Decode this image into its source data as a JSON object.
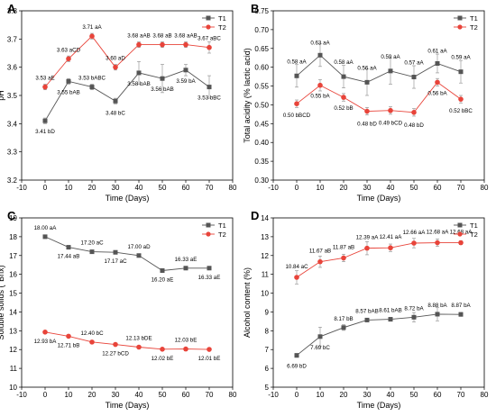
{
  "chart_data": [
    {
      "type": "line",
      "panel": "A",
      "xlabel": "Time (Days)",
      "ylabel": "pH",
      "xlim": [
        -10,
        80
      ],
      "ylim": [
        3.2,
        3.8
      ],
      "xticks": [
        -10,
        0,
        10,
        20,
        30,
        40,
        50,
        60,
        70,
        80
      ],
      "yticks": [
        3.2,
        3.3,
        3.4,
        3.5,
        3.6,
        3.7,
        3.8
      ],
      "ytick_labels": [
        "3.2",
        "3.3",
        "3.4",
        "3.5",
        "3.6",
        "3.7",
        "3.8"
      ],
      "x": [
        0,
        10,
        20,
        30,
        40,
        50,
        60,
        70
      ],
      "legend_position": "top-right",
      "series": [
        {
          "name": "T1",
          "color": "#555555",
          "marker": "square",
          "values": [
            3.41,
            3.55,
            3.53,
            3.48,
            3.58,
            3.56,
            3.59,
            3.53
          ],
          "errors": [
            0.01,
            0.01,
            0.01,
            0.01,
            0.04,
            0.05,
            0.02,
            0.04
          ],
          "labels": [
            "3.41 bD",
            "3.55 bAB",
            "3.53 bABC",
            "3.48 bC",
            "3.58 bAB",
            "3.56 bAB",
            "3.59 bA",
            "3.53 bBC"
          ]
        },
        {
          "name": "T2",
          "color": "#e8443a",
          "marker": "circle",
          "values": [
            3.53,
            3.63,
            3.71,
            3.6,
            3.68,
            3.68,
            3.68,
            3.67
          ],
          "errors": [
            0.01,
            0.01,
            0.01,
            0.01,
            0.01,
            0.01,
            0.01,
            0.02
          ],
          "labels": [
            "3.53 aE",
            "3.63 aCD",
            "3.71 aA",
            "3.60 aD",
            "3.68 aAB",
            "3.68 aB",
            "3.68 aAB",
            "3.67 aBC"
          ]
        }
      ]
    },
    {
      "type": "line",
      "panel": "B",
      "xlabel": "Time (Days)",
      "ylabel": "Total acidity (% lactic acid)",
      "xlim": [
        -10,
        80
      ],
      "ylim": [
        0.3,
        0.75
      ],
      "xticks": [
        -10,
        0,
        10,
        20,
        30,
        40,
        50,
        60,
        70,
        80
      ],
      "yticks": [
        0.3,
        0.35,
        0.4,
        0.45,
        0.5,
        0.55,
        0.6,
        0.65,
        0.7,
        0.75
      ],
      "ytick_labels": [
        "0.30",
        "0.35",
        "0.40",
        "0.45",
        "0.50",
        "0.55",
        "0.60",
        "0.65",
        "0.70",
        "0.75"
      ],
      "x": [
        0,
        10,
        20,
        30,
        40,
        50,
        60,
        70
      ],
      "legend_position": "top-right",
      "series": [
        {
          "name": "T1",
          "color": "#555555",
          "marker": "square",
          "values": [
            0.577,
            0.632,
            0.575,
            0.56,
            0.59,
            0.574,
            0.61,
            0.588
          ],
          "errors": [
            0.03,
            0.03,
            0.03,
            0.035,
            0.035,
            0.03,
            0.025,
            0.03
          ],
          "labels": [
            "0.58 aA",
            "0.63 aA",
            "0.58 aA",
            "0.56 aA",
            "0.59 aA",
            "0.57 aA",
            "0.61 aA",
            "0.59 aA"
          ]
        },
        {
          "name": "T2",
          "color": "#e8443a",
          "marker": "circle",
          "values": [
            0.503,
            0.552,
            0.52,
            0.483,
            0.485,
            0.48,
            0.56,
            0.515
          ],
          "errors": [
            0.01,
            0.015,
            0.01,
            0.01,
            0.01,
            0.01,
            0.01,
            0.01
          ],
          "labels": [
            "0.50 bBCD",
            "0.55 bA",
            "0.52 bB",
            "0.48 bD",
            "0.49 bCD",
            "0.48 bD",
            "0.56 bA",
            "0.52 bBC"
          ]
        }
      ]
    },
    {
      "type": "line",
      "panel": "C",
      "xlabel": "Time (Days)",
      "ylabel": "Soluble solids (°Brix)",
      "xlim": [
        -10,
        80
      ],
      "ylim": [
        10,
        19
      ],
      "xticks": [
        -10,
        0,
        10,
        20,
        30,
        40,
        50,
        60,
        70,
        80
      ],
      "yticks": [
        10,
        11,
        12,
        13,
        14,
        15,
        16,
        17,
        18,
        19
      ],
      "ytick_labels": [
        "10",
        "11",
        "12",
        "13",
        "14",
        "15",
        "16",
        "17",
        "18",
        "19"
      ],
      "x": [
        0,
        10,
        20,
        30,
        40,
        50,
        60,
        70
      ],
      "legend_position": "top-right",
      "series": [
        {
          "name": "T1",
          "color": "#555555",
          "marker": "square",
          "values": [
            18.0,
            17.44,
            17.2,
            17.17,
            17.0,
            16.2,
            16.33,
            16.33
          ],
          "errors": [
            0.05,
            0.05,
            0.05,
            0.05,
            0.05,
            0.05,
            0.05,
            0.05
          ],
          "labels": [
            "18.00 aA",
            "17.44 aB",
            "17.20 aC",
            "17.17 aC",
            "17.00 aD",
            "16.20 aE",
            "16.33 aE",
            "16.33 aE"
          ]
        },
        {
          "name": "T2",
          "color": "#e8443a",
          "marker": "circle",
          "values": [
            12.93,
            12.71,
            12.4,
            12.27,
            12.13,
            12.02,
            12.03,
            12.01
          ],
          "errors": [
            0.05,
            0.05,
            0.05,
            0.05,
            0.05,
            0.05,
            0.05,
            0.05
          ],
          "labels": [
            "12.93 bA",
            "12.71 bB",
            "12.40 bC",
            "12.27 bCD",
            "12.13 bDE",
            "12.02 bE",
            "12.03 bE",
            "12.01 bE"
          ]
        }
      ]
    },
    {
      "type": "line",
      "panel": "D",
      "xlabel": "Time (Days)",
      "ylabel": "Alcohol content (%)",
      "xlim": [
        -10,
        80
      ],
      "ylim": [
        5,
        14
      ],
      "xticks": [
        -10,
        0,
        10,
        20,
        30,
        40,
        50,
        60,
        70,
        80
      ],
      "yticks": [
        5,
        6,
        7,
        8,
        9,
        10,
        11,
        12,
        13,
        14
      ],
      "ytick_labels": [
        "5",
        "6",
        "7",
        "8",
        "9",
        "10",
        "11",
        "12",
        "13",
        "14"
      ],
      "x": [
        0,
        10,
        20,
        30,
        40,
        50,
        60,
        70
      ],
      "legend_position": "top-right",
      "series": [
        {
          "name": "T1",
          "color": "#555555",
          "marker": "square",
          "values": [
            6.69,
            7.69,
            8.17,
            8.57,
            8.61,
            8.72,
            8.88,
            8.87
          ],
          "errors": [
            0.1,
            0.5,
            0.15,
            0.1,
            0.1,
            0.25,
            0.35,
            0.1
          ],
          "labels": [
            "6.69 bD",
            "7.69 bC",
            "8.17 bB",
            "8.57 bAB",
            "8.61 bAB",
            "8.72 bA",
            "8.88 bA",
            "8.87 bA"
          ]
        },
        {
          "name": "T2",
          "color": "#e8443a",
          "marker": "circle",
          "values": [
            10.84,
            11.67,
            11.87,
            12.39,
            12.41,
            12.66,
            12.68,
            12.68
          ],
          "errors": [
            0.35,
            0.3,
            0.2,
            0.35,
            0.2,
            0.25,
            0.2,
            0.1
          ],
          "labels": [
            "10.84 aC",
            "11.67 aB",
            "11.87 aB",
            "12.39 aA",
            "12.41 aA",
            "12.66 aA",
            "12.68 aA",
            "12.68 aA"
          ]
        }
      ]
    }
  ]
}
